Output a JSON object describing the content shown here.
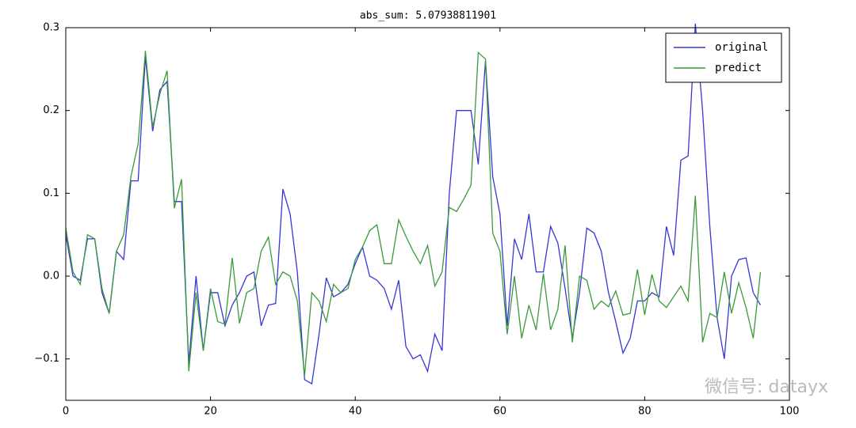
{
  "chart_data": {
    "type": "line",
    "title": "abs_sum: 5.07938811901",
    "x": [
      0,
      1,
      2,
      3,
      4,
      5,
      6,
      7,
      8,
      9,
      10,
      11,
      12,
      13,
      14,
      15,
      16,
      17,
      18,
      19,
      20,
      21,
      22,
      23,
      24,
      25,
      26,
      27,
      28,
      29,
      30,
      31,
      32,
      33,
      34,
      35,
      36,
      37,
      38,
      39,
      40,
      41,
      42,
      43,
      44,
      45,
      46,
      47,
      48,
      49,
      50,
      51,
      52,
      53,
      54,
      55,
      56,
      57,
      58,
      59,
      60,
      61,
      62,
      63,
      64,
      65,
      66,
      67,
      68,
      69,
      70,
      71,
      72,
      73,
      74,
      75,
      76,
      77,
      78,
      79,
      80,
      81,
      82,
      83,
      84,
      85,
      86,
      87,
      88,
      89,
      90,
      91,
      92,
      93,
      94,
      95,
      96
    ],
    "series": [
      {
        "name": "original",
        "color": "#3636d8",
        "values": [
          0.05,
          0.0,
          -0.005,
          0.045,
          0.045,
          -0.02,
          -0.045,
          0.03,
          0.02,
          0.115,
          0.115,
          0.265,
          0.175,
          0.225,
          0.235,
          0.09,
          0.09,
          -0.105,
          0.0,
          -0.09,
          -0.02,
          -0.02,
          -0.06,
          -0.035,
          -0.02,
          0.0,
          0.005,
          -0.06,
          -0.035,
          -0.033,
          0.105,
          0.075,
          0.005,
          -0.125,
          -0.13,
          -0.07,
          -0.002,
          -0.025,
          -0.02,
          -0.01,
          0.015,
          0.035,
          0.0,
          -0.005,
          -0.015,
          -0.04,
          -0.005,
          -0.085,
          -0.1,
          -0.095,
          -0.115,
          -0.07,
          -0.09,
          0.1,
          0.2,
          0.2,
          0.2,
          0.135,
          0.26,
          0.12,
          0.075,
          -0.06,
          0.045,
          0.02,
          0.075,
          0.005,
          0.005,
          0.06,
          0.04,
          -0.015,
          -0.075,
          -0.02,
          0.058,
          0.052,
          0.03,
          -0.02,
          -0.055,
          -0.093,
          -0.075,
          -0.03,
          -0.03,
          -0.02,
          -0.025,
          0.06,
          0.025,
          0.14,
          0.145,
          0.305,
          0.2,
          0.06,
          -0.05,
          -0.1,
          0.0,
          0.02,
          0.022,
          -0.02,
          -0.035
        ]
      },
      {
        "name": "predict",
        "color": "#3a9a3a",
        "values": [
          0.058,
          0.005,
          -0.01,
          0.05,
          0.045,
          -0.015,
          -0.045,
          0.03,
          0.05,
          0.12,
          0.16,
          0.272,
          0.18,
          0.22,
          0.248,
          0.082,
          0.117,
          -0.115,
          -0.02,
          -0.09,
          -0.015,
          -0.055,
          -0.058,
          0.022,
          -0.057,
          -0.02,
          -0.015,
          0.03,
          0.047,
          -0.01,
          0.005,
          0.0,
          -0.03,
          -0.12,
          -0.02,
          -0.03,
          -0.055,
          -0.01,
          -0.02,
          -0.015,
          0.02,
          0.035,
          0.055,
          0.062,
          0.015,
          0.015,
          0.068,
          0.048,
          0.03,
          0.015,
          0.037,
          -0.012,
          0.005,
          0.083,
          0.078,
          0.093,
          0.11,
          0.27,
          0.262,
          0.052,
          0.03,
          -0.07,
          0.0,
          -0.075,
          -0.035,
          -0.065,
          0.003,
          -0.065,
          -0.04,
          0.037,
          -0.08,
          0.0,
          -0.005,
          -0.04,
          -0.03,
          -0.037,
          -0.018,
          -0.047,
          -0.045,
          0.008,
          -0.047,
          0.002,
          -0.03,
          -0.038,
          -0.025,
          -0.012,
          -0.03,
          0.097,
          -0.08,
          -0.045,
          -0.05,
          0.005,
          -0.045,
          -0.008,
          -0.038,
          -0.075,
          0.005
        ]
      }
    ],
    "xlim": [
      0,
      100
    ],
    "xticks": [
      0,
      20,
      40,
      60,
      80,
      100
    ],
    "ylim": [
      -0.15,
      0.3
    ],
    "yticks": [
      {
        "value": -0.1,
        "label": "−0.1"
      },
      {
        "value": 0,
        "label": "0.0"
      },
      0.1,
      0.2,
      0.3
    ],
    "grid": false,
    "legend": "upper right",
    "watermark": "微信号: datayx"
  }
}
